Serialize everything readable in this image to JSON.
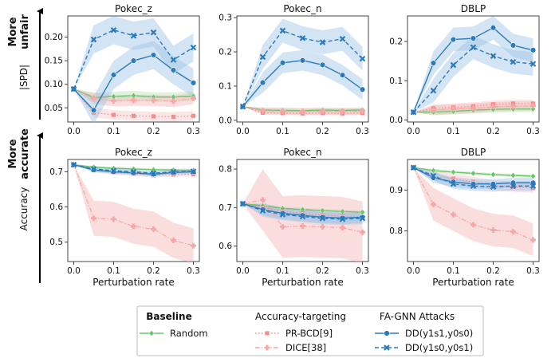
{
  "side_labels": {
    "top_more": "More",
    "top_quality": "unfair",
    "top_metric": "|SPD|",
    "bottom_more": "More",
    "bottom_quality": "accurate",
    "bottom_metric": "Accuracy"
  },
  "legend": {
    "groups": [
      {
        "title": "Baseline",
        "entries": [
          {
            "series": "random",
            "label": "Random"
          }
        ]
      },
      {
        "title": "Accuracy-targeting",
        "entries": [
          {
            "series": "prbcd",
            "label": "PR-BCD[9]"
          },
          {
            "series": "dice",
            "label": "DICE[38]"
          }
        ]
      },
      {
        "title": "FA-GNN Attacks",
        "entries": [
          {
            "series": "dd1",
            "label": "DD(y1s1,y0s0)"
          },
          {
            "series": "dd2",
            "label": "DD(y1s0,y0s1)"
          }
        ]
      }
    ]
  },
  "colors": {
    "random": "#6cc46c",
    "prbcd": "#f28e8e",
    "dice": "#f6a8a8",
    "dd1": "#2b7bba",
    "dd2": "#2b7bba",
    "band_red": "#f4b6b6",
    "band_blue": "#9dc3e6",
    "band_green": "#b9e3b9"
  },
  "chart_data": [
    {
      "type": "line",
      "title": "Pokec_z",
      "xlabel": "",
      "ylabel": "",
      "x": [
        0,
        0.05,
        0.1,
        0.15,
        0.2,
        0.25,
        0.3
      ],
      "xlim": [
        -0.015,
        0.315
      ],
      "ylim": [
        0.02,
        0.245
      ],
      "xticks": [
        "0.0",
        "0.1",
        "0.2",
        "0.3"
      ],
      "yticks": [
        "0.05",
        "0.10",
        "0.15",
        "0.20"
      ],
      "series": [
        {
          "key": "random",
          "values": [
            0.09,
            0.072,
            0.074,
            0.076,
            0.073,
            0.073,
            0.075
          ],
          "band": 0.01
        },
        {
          "key": "prbcd",
          "values": [
            0.09,
            0.04,
            0.035,
            0.033,
            0.032,
            0.031,
            0.033
          ],
          "band": 0.01
        },
        {
          "key": "dice",
          "values": [
            0.09,
            0.07,
            0.065,
            0.066,
            0.066,
            0.064,
            0.07
          ],
          "band": 0.012
        },
        {
          "key": "dd1",
          "values": [
            0.09,
            0.045,
            0.12,
            0.15,
            0.162,
            0.13,
            0.103
          ],
          "band": 0.03
        },
        {
          "key": "dd2",
          "values": [
            0.09,
            0.195,
            0.215,
            0.203,
            0.21,
            0.152,
            0.178
          ],
          "band": 0.03
        }
      ]
    },
    {
      "type": "line",
      "title": "Pokec_n",
      "xlabel": "",
      "ylabel": "",
      "x": [
        0,
        0.05,
        0.1,
        0.15,
        0.2,
        0.25,
        0.3
      ],
      "xlim": [
        -0.015,
        0.315
      ],
      "ylim": [
        -0.005,
        0.305
      ],
      "xticks": [
        "0.0",
        "0.1",
        "0.2",
        "0.3"
      ],
      "yticks": [
        "0.0",
        "0.1",
        "0.2",
        "0.3"
      ],
      "series": [
        {
          "key": "random",
          "values": [
            0.04,
            0.03,
            0.029,
            0.028,
            0.03,
            0.029,
            0.03
          ],
          "band": 0.006
        },
        {
          "key": "prbcd",
          "values": [
            0.04,
            0.022,
            0.021,
            0.02,
            0.021,
            0.02,
            0.021
          ],
          "band": 0.006
        },
        {
          "key": "dice",
          "values": [
            0.04,
            0.028,
            0.027,
            0.026,
            0.027,
            0.026,
            0.027
          ],
          "band": 0.01
        },
        {
          "key": "dd1",
          "values": [
            0.04,
            0.11,
            0.168,
            0.175,
            0.162,
            0.132,
            0.09
          ],
          "band": 0.03
        },
        {
          "key": "dd2",
          "values": [
            0.04,
            0.185,
            0.262,
            0.24,
            0.228,
            0.238,
            0.18
          ],
          "band": 0.035
        }
      ]
    },
    {
      "type": "line",
      "title": "DBLP",
      "xlabel": "",
      "ylabel": "",
      "x": [
        0,
        0.05,
        0.1,
        0.15,
        0.2,
        0.25,
        0.3
      ],
      "xlim": [
        -0.015,
        0.315
      ],
      "ylim": [
        -0.005,
        0.265
      ],
      "xticks": [
        "0.0",
        "0.1",
        "0.2",
        "0.3"
      ],
      "yticks": [
        "0.0",
        "0.1",
        "0.2"
      ],
      "series": [
        {
          "key": "random",
          "values": [
            0.02,
            0.02,
            0.022,
            0.025,
            0.027,
            0.028,
            0.028
          ],
          "band": 0.008
        },
        {
          "key": "prbcd",
          "values": [
            0.02,
            0.03,
            0.032,
            0.035,
            0.04,
            0.042,
            0.042
          ],
          "band": 0.01
        },
        {
          "key": "dice",
          "values": [
            0.02,
            0.025,
            0.028,
            0.03,
            0.034,
            0.035,
            0.036
          ],
          "band": 0.012
        },
        {
          "key": "dd1",
          "values": [
            0.02,
            0.145,
            0.205,
            0.208,
            0.235,
            0.19,
            0.178
          ],
          "band": 0.03
        },
        {
          "key": "dd2",
          "values": [
            0.02,
            0.075,
            0.14,
            0.185,
            0.163,
            0.148,
            0.143
          ],
          "band": 0.03
        }
      ]
    },
    {
      "type": "line",
      "title": "Pokec_z",
      "xlabel": "Perturbation rate",
      "ylabel": "",
      "x": [
        0,
        0.05,
        0.1,
        0.15,
        0.2,
        0.25,
        0.3
      ],
      "xlim": [
        -0.015,
        0.315
      ],
      "ylim": [
        0.445,
        0.735
      ],
      "xticks": [
        "0.0",
        "0.1",
        "0.2",
        "0.3"
      ],
      "yticks": [
        "0.5",
        "0.6",
        "0.7"
      ],
      "series": [
        {
          "key": "random",
          "values": [
            0.72,
            0.713,
            0.71,
            0.708,
            0.706,
            0.705,
            0.704
          ],
          "band": 0.004
        },
        {
          "key": "prbcd",
          "values": [
            0.72,
            0.705,
            0.698,
            0.694,
            0.69,
            0.692,
            0.693
          ],
          "band": 0.006
        },
        {
          "key": "dice",
          "values": [
            0.72,
            0.568,
            0.565,
            0.545,
            0.537,
            0.505,
            0.49
          ],
          "band": 0.05
        },
        {
          "key": "dd1",
          "values": [
            0.72,
            0.705,
            0.7,
            0.697,
            0.693,
            0.698,
            0.7
          ],
          "band": 0.006
        },
        {
          "key": "dd2",
          "values": [
            0.72,
            0.708,
            0.703,
            0.7,
            0.696,
            0.7,
            0.701
          ],
          "band": 0.006
        }
      ]
    },
    {
      "type": "line",
      "title": "Pokec_n",
      "xlabel": "Perturbation rate",
      "ylabel": "",
      "x": [
        0,
        0.05,
        0.1,
        0.15,
        0.2,
        0.25,
        0.3
      ],
      "xlim": [
        -0.015,
        0.315
      ],
      "ylim": [
        0.56,
        0.825
      ],
      "xticks": [
        "0.0",
        "0.1",
        "0.2",
        "0.3"
      ],
      "yticks": [
        "0.6",
        "0.7",
        "0.8"
      ],
      "series": [
        {
          "key": "random",
          "values": [
            0.71,
            0.705,
            0.698,
            0.695,
            0.692,
            0.69,
            0.688
          ],
          "band": 0.005
        },
        {
          "key": "prbcd",
          "values": [
            0.71,
            0.7,
            0.69,
            0.685,
            0.68,
            0.678,
            0.676
          ],
          "band": 0.008
        },
        {
          "key": "dice",
          "values": [
            0.71,
            0.72,
            0.65,
            0.652,
            0.65,
            0.648,
            0.636
          ],
          "band": 0.08
        },
        {
          "key": "dd1",
          "values": [
            0.71,
            0.695,
            0.685,
            0.68,
            0.675,
            0.673,
            0.675
          ],
          "band": 0.015
        },
        {
          "key": "dd2",
          "values": [
            0.71,
            0.692,
            0.682,
            0.677,
            0.672,
            0.67,
            0.672
          ],
          "band": 0.015
        }
      ]
    },
    {
      "type": "line",
      "title": "DBLP",
      "xlabel": "Perturbation rate",
      "ylabel": "",
      "x": [
        0,
        0.05,
        0.1,
        0.15,
        0.2,
        0.25,
        0.3
      ],
      "xlim": [
        -0.015,
        0.315
      ],
      "ylim": [
        0.725,
        0.975
      ],
      "xticks": [
        "0.0",
        "0.1",
        "0.2",
        "0.3"
      ],
      "yticks": [
        "0.8",
        "0.9"
      ],
      "series": [
        {
          "key": "random",
          "values": [
            0.955,
            0.948,
            0.944,
            0.941,
            0.938,
            0.936,
            0.934
          ],
          "band": 0.004
        },
        {
          "key": "prbcd",
          "values": [
            0.955,
            0.935,
            0.928,
            0.92,
            0.912,
            0.908,
            0.905
          ],
          "band": 0.012
        },
        {
          "key": "dice",
          "values": [
            0.955,
            0.865,
            0.84,
            0.815,
            0.802,
            0.798,
            0.778
          ],
          "band": 0.04
        },
        {
          "key": "dd1",
          "values": [
            0.955,
            0.93,
            0.92,
            0.915,
            0.915,
            0.918,
            0.918
          ],
          "band": 0.012
        },
        {
          "key": "dd2",
          "values": [
            0.955,
            0.935,
            0.915,
            0.91,
            0.908,
            0.91,
            0.91
          ],
          "band": 0.012
        }
      ]
    }
  ]
}
